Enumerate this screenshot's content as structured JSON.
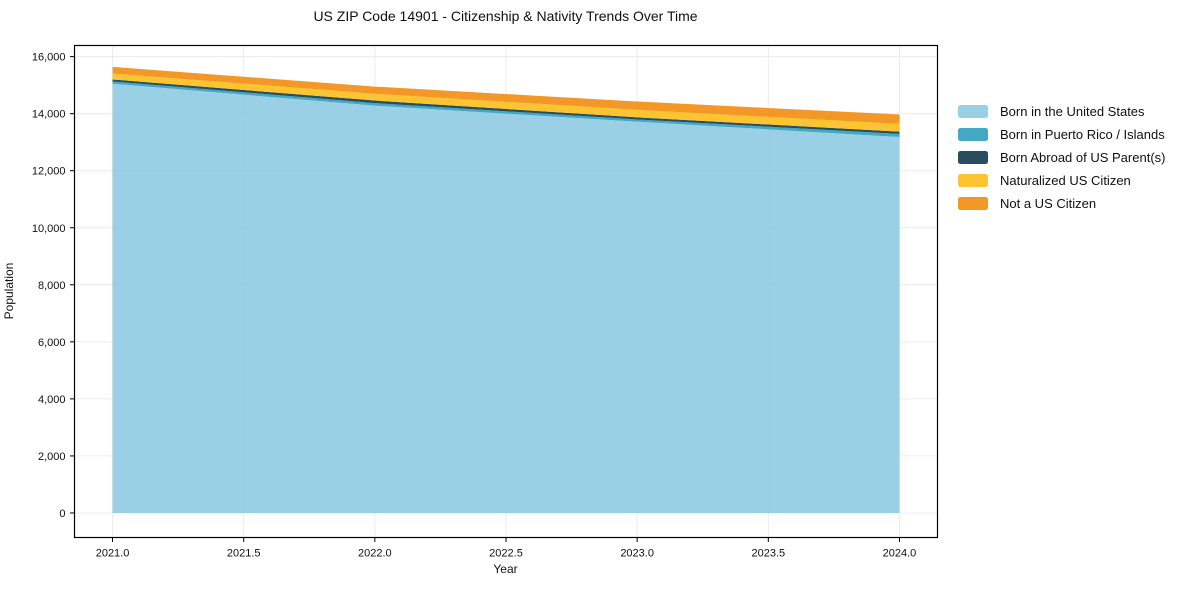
{
  "figure": {
    "title": "US ZIP Code 14901 - Citizenship & Nativity Trends Over Time",
    "xlabel": "Year",
    "ylabel": "Population"
  },
  "chart_data": {
    "type": "area",
    "stacked": true,
    "title": "US ZIP Code 14901 - Citizenship & Nativity Trends Over Time",
    "xlabel": "Year",
    "ylabel": "Population",
    "x": [
      2021,
      2022,
      2023,
      2024
    ],
    "series": [
      {
        "name": "Born in the United States",
        "color": "#8ecbe3",
        "values": [
          15050,
          14280,
          13720,
          13180
        ]
      },
      {
        "name": "Born in Puerto Rico / Islands",
        "color": "#2d9fbe",
        "values": [
          80,
          90,
          75,
          110
        ]
      },
      {
        "name": "Born Abroad of US Parent(s)",
        "color": "#0f3a4e",
        "values": [
          70,
          90,
          75,
          80
        ]
      },
      {
        "name": "Naturalized US Citizen",
        "color": "#fcbe1a",
        "values": [
          210,
          240,
          265,
          270
        ]
      },
      {
        "name": "Not a US Citizen",
        "color": "#f28c10",
        "values": [
          230,
          250,
          290,
          330
        ]
      }
    ],
    "totals": [
      15640,
      14950,
      14425,
      13970
    ],
    "xticks": {
      "values": [
        2021.0,
        2021.5,
        2022.0,
        2022.5,
        2023.0,
        2023.5,
        2024.0
      ],
      "labels": [
        "2021.0",
        "2021.5",
        "2022.0",
        "2022.5",
        "2023.0",
        "2023.5",
        "2024.0"
      ]
    },
    "yticks": {
      "values": [
        0,
        2000,
        4000,
        6000,
        8000,
        10000,
        12000,
        14000,
        16000
      ],
      "labels": [
        "0",
        "2,000",
        "4,000",
        "6,000",
        "8,000",
        "10,000",
        "12,000",
        "14,000",
        "16,000"
      ]
    },
    "xlim": [
      2020.855,
      2024.145
    ],
    "ylim": [
      -860,
      16390
    ],
    "grid": true,
    "grid_color": "#ececec",
    "legend_position": "right outside"
  }
}
